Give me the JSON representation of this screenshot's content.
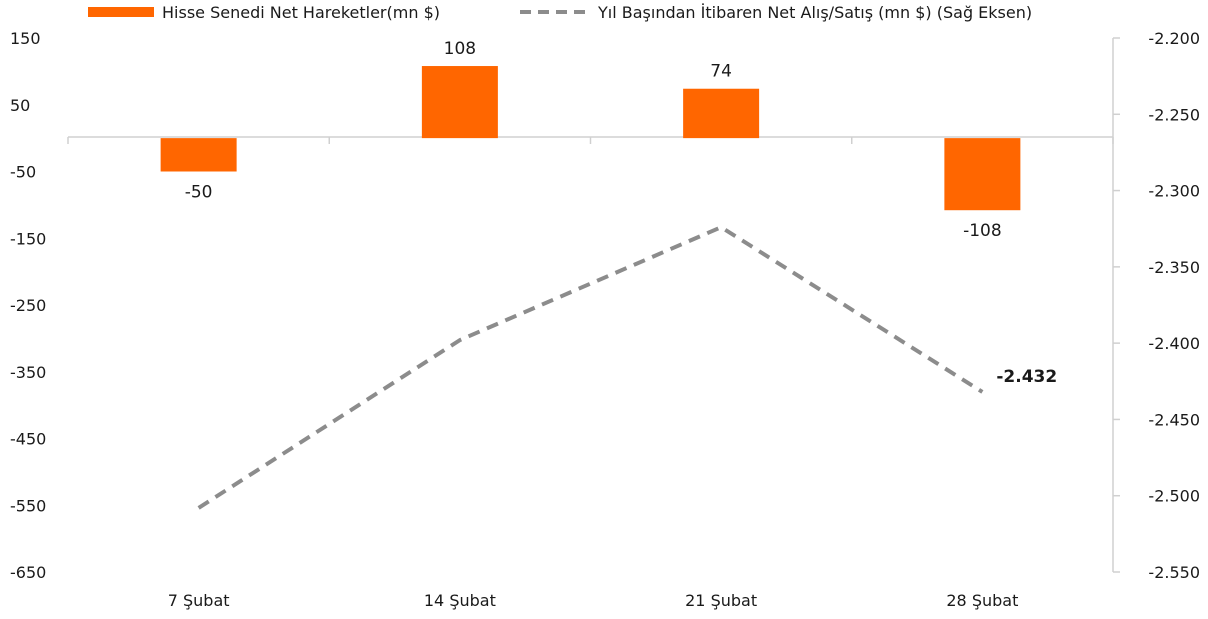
{
  "chart_data": {
    "type": "bar",
    "categories": [
      "7 Şubat",
      "14 Şubat",
      "21 Şubat",
      "28 Şubat"
    ],
    "series": [
      {
        "name": "Hisse Senedi Net Hareketler(mn $)",
        "type": "bar",
        "axis": "left",
        "color": "#FF6600",
        "values": [
          -50,
          108,
          74,
          -108
        ],
        "labels": [
          "-50",
          "108",
          "74",
          "-108"
        ]
      },
      {
        "name": "Yıl Başından İtibaren Net Alış/Satış (mn $) (Sağ Eksen)",
        "type": "line",
        "axis": "right",
        "style": "dashed",
        "color": "#8C8C8C",
        "values": [
          -2508,
          -2398,
          -2324,
          -2432
        ],
        "last_label": "-2.432"
      }
    ],
    "y_left": {
      "ylim": [
        -650,
        150
      ],
      "ticks": [
        150,
        50,
        -50,
        -150,
        -250,
        -350,
        -450,
        -550,
        -650
      ],
      "tick_labels": [
        "150",
        "50",
        "-50",
        "-150",
        "-250",
        "-350",
        "-450",
        "-550",
        "-650"
      ]
    },
    "y_right": {
      "ylim": [
        -2550,
        -2200
      ],
      "ticks": [
        -2200,
        -2250,
        -2300,
        -2350,
        -2400,
        -2450,
        -2500,
        -2550
      ],
      "tick_labels": [
        "-2.200",
        "-2.250",
        "-2.300",
        "-2.350",
        "-2.400",
        "-2.450",
        "-2.500",
        "-2.550"
      ]
    },
    "legend_position": "top",
    "grid": false
  }
}
